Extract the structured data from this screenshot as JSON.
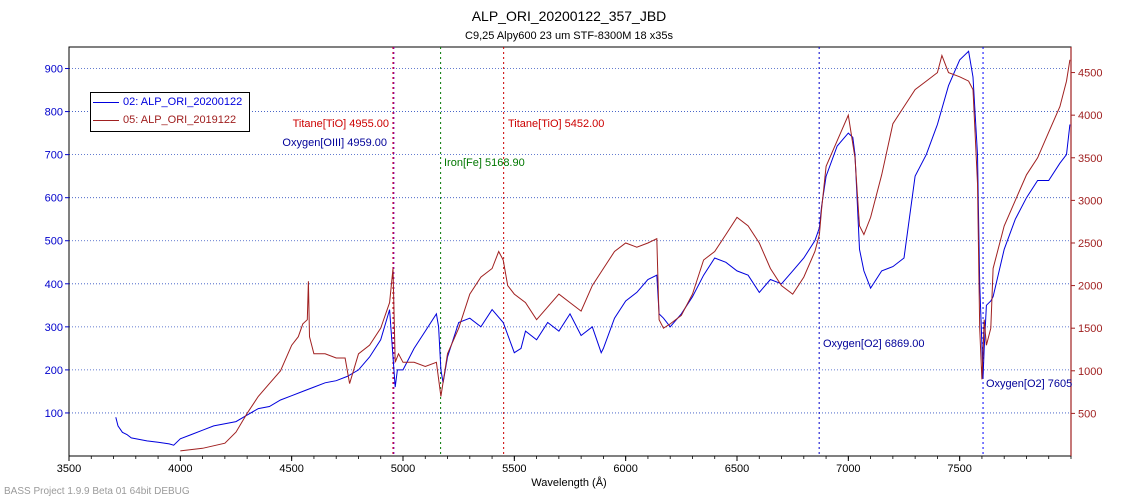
{
  "app": {
    "footer": "BASS Project 1.9.9 Beta 01 64bit DEBUG"
  },
  "chart_data": {
    "type": "line",
    "title": "ALP_ORI_20200122_357_JBD",
    "subtitle": "C9,25 Alpy600 23 um STF-8300M 18 x35s",
    "xlabel": "Wavelength (Å)",
    "xlim": [
      3500,
      8000
    ],
    "xticks": [
      3500,
      4000,
      4500,
      5000,
      5500,
      6000,
      6500,
      7000,
      7500
    ],
    "ylim_left": [
      0,
      950
    ],
    "yticks_left": [
      100,
      200,
      300,
      400,
      500,
      600,
      700,
      800,
      900
    ],
    "ylim_right": [
      0,
      4800
    ],
    "yticks_right": [
      500,
      1000,
      1500,
      2000,
      2500,
      3000,
      3500,
      4000,
      4500
    ],
    "grid": "horizontal dotted",
    "legend_placement": "top-left",
    "series": [
      {
        "name": "02: ALP_ORI_20200122",
        "color": "#0000dd",
        "axis": "left",
        "x": [
          3710,
          3720,
          3740,
          3760,
          3780,
          3800,
          3850,
          3900,
          3950,
          3970,
          4000,
          4050,
          4100,
          4150,
          4200,
          4250,
          4300,
          4350,
          4400,
          4450,
          4500,
          4550,
          4600,
          4650,
          4700,
          4750,
          4800,
          4850,
          4900,
          4940,
          4955,
          4965,
          4975,
          5000,
          5050,
          5100,
          5150,
          5160,
          5170,
          5180,
          5200,
          5250,
          5300,
          5350,
          5400,
          5450,
          5500,
          5530,
          5550,
          5600,
          5650,
          5700,
          5750,
          5800,
          5850,
          5890,
          5900,
          5950,
          6000,
          6050,
          6100,
          6140,
          6150,
          6170,
          6200,
          6250,
          6300,
          6350,
          6400,
          6450,
          6500,
          6550,
          6600,
          6650,
          6700,
          6750,
          6800,
          6850,
          6870,
          6880,
          6900,
          6950,
          7000,
          7020,
          7030,
          7050,
          7070,
          7100,
          7150,
          7200,
          7250,
          7300,
          7350,
          7400,
          7450,
          7500,
          7540,
          7560,
          7580,
          7590,
          7600,
          7605,
          7610,
          7620,
          7640,
          7650,
          7700,
          7750,
          7800,
          7850,
          7900,
          7950,
          7980,
          7995
        ],
        "y": [
          90,
          70,
          55,
          50,
          42,
          40,
          35,
          32,
          28,
          25,
          40,
          50,
          60,
          70,
          75,
          80,
          95,
          110,
          115,
          130,
          140,
          150,
          160,
          170,
          175,
          185,
          200,
          230,
          270,
          340,
          230,
          160,
          200,
          200,
          250,
          290,
          330,
          300,
          200,
          170,
          230,
          310,
          320,
          300,
          340,
          310,
          240,
          250,
          290,
          270,
          310,
          290,
          330,
          280,
          300,
          240,
          250,
          320,
          360,
          380,
          410,
          420,
          330,
          320,
          300,
          330,
          370,
          420,
          460,
          450,
          430,
          420,
          380,
          410,
          400,
          430,
          460,
          500,
          530,
          580,
          650,
          720,
          750,
          740,
          700,
          480,
          430,
          390,
          430,
          440,
          460,
          650,
          700,
          770,
          860,
          920,
          940,
          880,
          700,
          400,
          260,
          180,
          250,
          350,
          360,
          370,
          480,
          550,
          600,
          640,
          640,
          680,
          700,
          770
        ]
      },
      {
        "name": "05: ALP_ORI_2019122",
        "color": "#a02020",
        "axis": "right",
        "x": [
          4000,
          4100,
          4200,
          4250,
          4300,
          4350,
          4400,
          4450,
          4500,
          4530,
          4550,
          4570,
          4575,
          4580,
          4600,
          4650,
          4700,
          4740,
          4760,
          4800,
          4850,
          4900,
          4940,
          4955,
          4965,
          4980,
          5000,
          5050,
          5100,
          5150,
          5170,
          5200,
          5250,
          5300,
          5350,
          5400,
          5430,
          5450,
          5470,
          5500,
          5550,
          5600,
          5650,
          5700,
          5750,
          5800,
          5850,
          5900,
          5950,
          6000,
          6050,
          6100,
          6140,
          6150,
          6170,
          6200,
          6250,
          6300,
          6350,
          6400,
          6450,
          6500,
          6550,
          6600,
          6650,
          6700,
          6750,
          6800,
          6850,
          6870,
          6880,
          6900,
          6950,
          7000,
          7030,
          7040,
          7050,
          7070,
          7100,
          7150,
          7200,
          7250,
          7300,
          7350,
          7400,
          7420,
          7450,
          7500,
          7540,
          7560,
          7580,
          7590,
          7600,
          7605,
          7610,
          7620,
          7640,
          7650,
          7700,
          7750,
          7800,
          7850,
          7900,
          7950,
          7980,
          7995
        ],
        "y": [
          60,
          90,
          150,
          280,
          500,
          700,
          850,
          1000,
          1300,
          1400,
          1550,
          1600,
          2050,
          1400,
          1200,
          1200,
          1150,
          1150,
          850,
          1200,
          1300,
          1500,
          1800,
          2200,
          1100,
          1200,
          1100,
          1100,
          1050,
          1100,
          700,
          1200,
          1500,
          1900,
          2100,
          2200,
          2400,
          2300,
          2000,
          1900,
          1800,
          1600,
          1750,
          1900,
          1800,
          1700,
          2000,
          2200,
          2400,
          2500,
          2450,
          2500,
          2550,
          1600,
          1500,
          1550,
          1650,
          1900,
          2300,
          2400,
          2600,
          2800,
          2700,
          2500,
          2200,
          2000,
          1900,
          2100,
          2400,
          2600,
          2900,
          3400,
          3700,
          4000,
          3500,
          3100,
          2700,
          2600,
          2800,
          3300,
          3900,
          4100,
          4300,
          4400,
          4500,
          4700,
          4500,
          4450,
          4400,
          4300,
          3200,
          1500,
          900,
          1200,
          1600,
          1300,
          1500,
          2200,
          2700,
          3000,
          3300,
          3500,
          3800,
          4100,
          4400,
          4650
        ]
      }
    ],
    "annotations": [
      {
        "label": "Titane[TiO] 4955.00",
        "x": 4955,
        "color": "#cc0000",
        "line": "#cc0000"
      },
      {
        "label": "Oxygen[OIII] 4959.00",
        "x": 4959,
        "color": "#000099",
        "line": "#8000c0"
      },
      {
        "label": "Iron[Fe] 5168.90",
        "x": 5168.9,
        "color": "#007700",
        "line": "#007700"
      },
      {
        "label": "Titane[TiO] 5452.00",
        "x": 5452,
        "color": "#cc0000",
        "line": "#cc0000"
      },
      {
        "label": "Oxygen[O2] 6869.00",
        "x": 6869,
        "color": "#000099",
        "line": "#0000cc"
      },
      {
        "label": "Oxygen[O2] 7605",
        "x": 7605,
        "color": "#000099",
        "line": "#0000ff"
      }
    ]
  }
}
